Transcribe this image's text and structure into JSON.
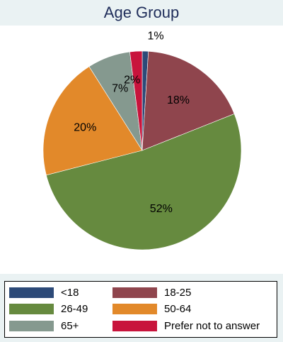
{
  "chart_data": {
    "type": "pie",
    "title": "Age Group",
    "categories": [
      "<18",
      "18-25",
      "26-49",
      "50-64",
      "65+",
      "Prefer not to answer"
    ],
    "values": [
      1,
      18,
      52,
      20,
      7,
      2
    ],
    "labels": [
      "1%",
      "18%",
      "52%",
      "20%",
      "7%",
      "2%"
    ],
    "colors": [
      "#2d4a78",
      "#8f454d",
      "#668a3f",
      "#e2892a",
      "#85998f",
      "#c8143c"
    ],
    "start": "12 o'clock",
    "direction": "clockwise",
    "legend_position": "bottom"
  }
}
